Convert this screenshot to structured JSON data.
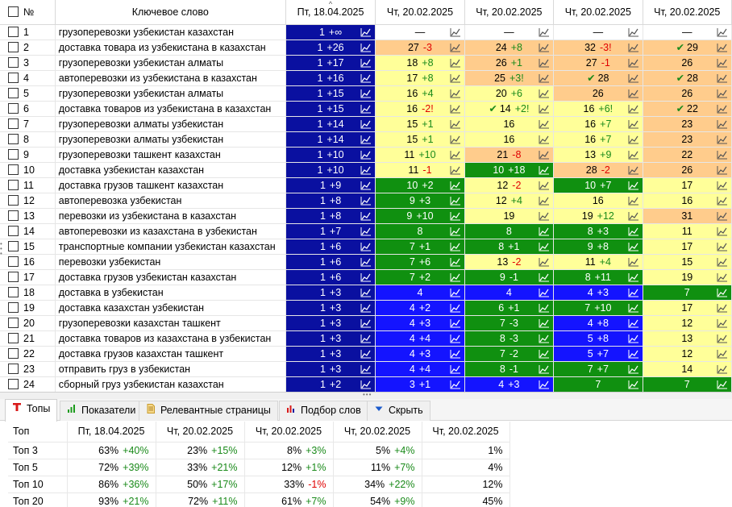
{
  "colors": {
    "navy": "#0a10a0",
    "blue": "#1414ff",
    "green": "#109010",
    "lightgreen": "#33cc33",
    "yellow": "#ffff99",
    "orange": "#ffcc8c",
    "delta_green": "#1a8a1a",
    "delta_red": "#e00000",
    "navy_green_delta": "#ffffff"
  },
  "header": {
    "num": "№",
    "keyword": "Ключевое слово",
    "dates": [
      "Пт, 18.04.2025",
      "Чт, 20.02.2025",
      "Чт, 20.02.2025",
      "Чт, 20.02.2025",
      "Чт, 20.02.2025"
    ]
  },
  "rows": [
    {
      "num": "1",
      "kw": "грузоперевозки узбекистан казахстан",
      "c": [
        {
          "v": "1",
          "d": "+∞",
          "bg": "navy"
        },
        {
          "v": "—",
          "d": "",
          "bg": "white"
        },
        {
          "v": "—",
          "d": "",
          "bg": "white"
        },
        {
          "v": "—",
          "d": "",
          "bg": "white"
        },
        {
          "v": "—",
          "d": "",
          "bg": "white"
        }
      ]
    },
    {
      "num": "2",
      "kw": "доставка товара из узбекистана в казахстан",
      "c": [
        {
          "v": "1",
          "d": "+26",
          "bg": "navy"
        },
        {
          "v": "27",
          "d": "-3",
          "bg": "orange"
        },
        {
          "v": "24",
          "d": "+8",
          "bg": "orange"
        },
        {
          "v": "32",
          "d": "-3!",
          "bg": "orange"
        },
        {
          "v": "29",
          "d": "",
          "bg": "orange",
          "check": true
        }
      ]
    },
    {
      "num": "3",
      "kw": "грузоперевозки узбекистан алматы",
      "c": [
        {
          "v": "1",
          "d": "+17",
          "bg": "navy"
        },
        {
          "v": "18",
          "d": "+8",
          "bg": "yellow"
        },
        {
          "v": "26",
          "d": "+1",
          "bg": "orange"
        },
        {
          "v": "27",
          "d": "-1",
          "bg": "orange"
        },
        {
          "v": "26",
          "d": "",
          "bg": "orange"
        }
      ]
    },
    {
      "num": "4",
      "kw": "автоперевозки из узбекистана в казахстан",
      "c": [
        {
          "v": "1",
          "d": "+16",
          "bg": "navy"
        },
        {
          "v": "17",
          "d": "+8",
          "bg": "yellow"
        },
        {
          "v": "25",
          "d": "+3!",
          "bg": "orange"
        },
        {
          "v": "28",
          "d": "",
          "bg": "orange",
          "check": true
        },
        {
          "v": "28",
          "d": "",
          "bg": "orange",
          "check": true
        }
      ]
    },
    {
      "num": "5",
      "kw": "грузоперевозки узбекистан алматы",
      "c": [
        {
          "v": "1",
          "d": "+15",
          "bg": "navy"
        },
        {
          "v": "16",
          "d": "+4",
          "bg": "yellow"
        },
        {
          "v": "20",
          "d": "+6",
          "bg": "yellow"
        },
        {
          "v": "26",
          "d": "",
          "bg": "orange"
        },
        {
          "v": "26",
          "d": "",
          "bg": "orange"
        }
      ]
    },
    {
      "num": "6",
      "kw": "доставка товаров из узбекистана в казахстан",
      "c": [
        {
          "v": "1",
          "d": "+15",
          "bg": "navy"
        },
        {
          "v": "16",
          "d": "-2!",
          "bg": "yellow"
        },
        {
          "v": "14",
          "d": "+2!",
          "bg": "yellow",
          "check": true
        },
        {
          "v": "16",
          "d": "+6!",
          "bg": "yellow"
        },
        {
          "v": "22",
          "d": "",
          "bg": "orange",
          "check": true
        }
      ]
    },
    {
      "num": "7",
      "kw": "грузоперевозки алматы узбекистан",
      "c": [
        {
          "v": "1",
          "d": "+14",
          "bg": "navy"
        },
        {
          "v": "15",
          "d": "+1",
          "bg": "yellow"
        },
        {
          "v": "16",
          "d": "",
          "bg": "yellow"
        },
        {
          "v": "16",
          "d": "+7",
          "bg": "yellow"
        },
        {
          "v": "23",
          "d": "",
          "bg": "orange"
        }
      ]
    },
    {
      "num": "8",
      "kw": "грузоперевозки алматы узбекистан",
      "c": [
        {
          "v": "1",
          "d": "+14",
          "bg": "navy"
        },
        {
          "v": "15",
          "d": "+1",
          "bg": "yellow"
        },
        {
          "v": "16",
          "d": "",
          "bg": "yellow"
        },
        {
          "v": "16",
          "d": "+7",
          "bg": "yellow"
        },
        {
          "v": "23",
          "d": "",
          "bg": "orange"
        }
      ]
    },
    {
      "num": "9",
      "kw": "грузоперевозки ташкент казахстан",
      "c": [
        {
          "v": "1",
          "d": "+10",
          "bg": "navy"
        },
        {
          "v": "11",
          "d": "+10",
          "bg": "yellow"
        },
        {
          "v": "21",
          "d": "-8",
          "bg": "orange"
        },
        {
          "v": "13",
          "d": "+9",
          "bg": "yellow"
        },
        {
          "v": "22",
          "d": "",
          "bg": "orange"
        }
      ]
    },
    {
      "num": "10",
      "kw": "доставка узбекистан казахстан",
      "c": [
        {
          "v": "1",
          "d": "+10",
          "bg": "navy"
        },
        {
          "v": "11",
          "d": "-1",
          "bg": "yellow"
        },
        {
          "v": "10",
          "d": "+18",
          "bg": "green"
        },
        {
          "v": "28",
          "d": "-2",
          "bg": "orange"
        },
        {
          "v": "26",
          "d": "",
          "bg": "orange"
        }
      ]
    },
    {
      "num": "11",
      "kw": "доставка грузов ташкент казахстан",
      "c": [
        {
          "v": "1",
          "d": "+9",
          "bg": "navy"
        },
        {
          "v": "10",
          "d": "+2",
          "bg": "green"
        },
        {
          "v": "12",
          "d": "-2",
          "bg": "yellow"
        },
        {
          "v": "10",
          "d": "+7",
          "bg": "green"
        },
        {
          "v": "17",
          "d": "",
          "bg": "yellow"
        }
      ]
    },
    {
      "num": "12",
      "kw": "автоперевозка узбекистан",
      "c": [
        {
          "v": "1",
          "d": "+8",
          "bg": "navy"
        },
        {
          "v": "9",
          "d": "+3",
          "bg": "green"
        },
        {
          "v": "12",
          "d": "+4",
          "bg": "yellow"
        },
        {
          "v": "16",
          "d": "",
          "bg": "yellow"
        },
        {
          "v": "16",
          "d": "",
          "bg": "yellow"
        }
      ]
    },
    {
      "num": "13",
      "kw": "перевозки из узбекистана в казахстан",
      "c": [
        {
          "v": "1",
          "d": "+8",
          "bg": "navy"
        },
        {
          "v": "9",
          "d": "+10",
          "bg": "green"
        },
        {
          "v": "19",
          "d": "",
          "bg": "yellow"
        },
        {
          "v": "19",
          "d": "+12",
          "bg": "yellow"
        },
        {
          "v": "31",
          "d": "",
          "bg": "orange"
        }
      ]
    },
    {
      "num": "14",
      "kw": "автоперевозки из казахстана в узбекистан",
      "c": [
        {
          "v": "1",
          "d": "+7",
          "bg": "navy"
        },
        {
          "v": "8",
          "d": "",
          "bg": "green"
        },
        {
          "v": "8",
          "d": "",
          "bg": "green"
        },
        {
          "v": "8",
          "d": "+3",
          "bg": "green"
        },
        {
          "v": "11",
          "d": "",
          "bg": "yellow"
        }
      ]
    },
    {
      "num": "15",
      "kw": "транспортные компании узбекистан казахстан",
      "c": [
        {
          "v": "1",
          "d": "+6",
          "bg": "navy"
        },
        {
          "v": "7",
          "d": "+1",
          "bg": "green"
        },
        {
          "v": "8",
          "d": "+1",
          "bg": "green"
        },
        {
          "v": "9",
          "d": "+8",
          "bg": "green"
        },
        {
          "v": "17",
          "d": "",
          "bg": "yellow"
        }
      ]
    },
    {
      "num": "16",
      "kw": "перевозки узбекистан",
      "c": [
        {
          "v": "1",
          "d": "+6",
          "bg": "navy"
        },
        {
          "v": "7",
          "d": "+6",
          "bg": "green"
        },
        {
          "v": "13",
          "d": "-2",
          "bg": "yellow"
        },
        {
          "v": "11",
          "d": "+4",
          "bg": "yellow"
        },
        {
          "v": "15",
          "d": "",
          "bg": "yellow"
        }
      ]
    },
    {
      "num": "17",
      "kw": "доставка грузов узбекистан казахстан",
      "c": [
        {
          "v": "1",
          "d": "+6",
          "bg": "navy"
        },
        {
          "v": "7",
          "d": "+2",
          "bg": "green"
        },
        {
          "v": "9",
          "d": "-1",
          "bg": "green"
        },
        {
          "v": "8",
          "d": "+11",
          "bg": "green"
        },
        {
          "v": "19",
          "d": "",
          "bg": "yellow"
        }
      ]
    },
    {
      "num": "18",
      "kw": "доставка в узбекистан",
      "c": [
        {
          "v": "1",
          "d": "+3",
          "bg": "navy"
        },
        {
          "v": "4",
          "d": "",
          "bg": "blue"
        },
        {
          "v": "4",
          "d": "",
          "bg": "blue"
        },
        {
          "v": "4",
          "d": "+3",
          "bg": "blue"
        },
        {
          "v": "7",
          "d": "",
          "bg": "green"
        }
      ]
    },
    {
      "num": "19",
      "kw": "доставка казахстан узбекистан",
      "c": [
        {
          "v": "1",
          "d": "+3",
          "bg": "navy"
        },
        {
          "v": "4",
          "d": "+2",
          "bg": "blue"
        },
        {
          "v": "6",
          "d": "+1",
          "bg": "green"
        },
        {
          "v": "7",
          "d": "+10",
          "bg": "green"
        },
        {
          "v": "17",
          "d": "",
          "bg": "yellow"
        }
      ]
    },
    {
      "num": "20",
      "kw": "грузоперевозки казахстан ташкент",
      "c": [
        {
          "v": "1",
          "d": "+3",
          "bg": "navy"
        },
        {
          "v": "4",
          "d": "+3",
          "bg": "blue"
        },
        {
          "v": "7",
          "d": "-3",
          "bg": "green"
        },
        {
          "v": "4",
          "d": "+8",
          "bg": "blue"
        },
        {
          "v": "12",
          "d": "",
          "bg": "yellow"
        }
      ]
    },
    {
      "num": "21",
      "kw": "доставка товаров из казахстана в узбекистан",
      "c": [
        {
          "v": "1",
          "d": "+3",
          "bg": "navy"
        },
        {
          "v": "4",
          "d": "+4",
          "bg": "blue"
        },
        {
          "v": "8",
          "d": "-3",
          "bg": "green"
        },
        {
          "v": "5",
          "d": "+8",
          "bg": "blue"
        },
        {
          "v": "13",
          "d": "",
          "bg": "yellow"
        }
      ]
    },
    {
      "num": "22",
      "kw": "доставка грузов казахстан ташкент",
      "c": [
        {
          "v": "1",
          "d": "+3",
          "bg": "navy"
        },
        {
          "v": "4",
          "d": "+3",
          "bg": "blue"
        },
        {
          "v": "7",
          "d": "-2",
          "bg": "green"
        },
        {
          "v": "5",
          "d": "+7",
          "bg": "blue"
        },
        {
          "v": "12",
          "d": "",
          "bg": "yellow"
        }
      ]
    },
    {
      "num": "23",
      "kw": "отправить груз в узбекистан",
      "c": [
        {
          "v": "1",
          "d": "+3",
          "bg": "navy"
        },
        {
          "v": "4",
          "d": "+4",
          "bg": "blue"
        },
        {
          "v": "8",
          "d": "-1",
          "bg": "green"
        },
        {
          "v": "7",
          "d": "+7",
          "bg": "green"
        },
        {
          "v": "14",
          "d": "",
          "bg": "yellow"
        }
      ]
    },
    {
      "num": "24",
      "kw": "сборный груз узбекистан казахстан",
      "c": [
        {
          "v": "1",
          "d": "+2",
          "bg": "navy"
        },
        {
          "v": "3",
          "d": "+1",
          "bg": "blue"
        },
        {
          "v": "4",
          "d": "+3",
          "bg": "blue"
        },
        {
          "v": "7",
          "d": "",
          "bg": "green"
        },
        {
          "v": "7",
          "d": "",
          "bg": "green"
        }
      ]
    }
  ],
  "tabs": [
    {
      "label": "Топы",
      "icon": "top-t-icon",
      "active": true
    },
    {
      "label": "Показатели",
      "icon": "bar-chart-icon",
      "active": false
    },
    {
      "label": "Релевантные страницы",
      "icon": "document-icon",
      "active": false
    },
    {
      "label": "Подбор слов",
      "icon": "word-chart-icon",
      "active": false
    },
    {
      "label": "Скрыть",
      "icon": "triangle-down-icon",
      "active": false
    }
  ],
  "tops": {
    "header": [
      "Топ",
      "Пт, 18.04.2025",
      "Чт, 20.02.2025",
      "Чт, 20.02.2025",
      "Чт, 20.02.2025",
      "Чт, 20.02.2025"
    ],
    "rows": [
      {
        "label": "Топ 3",
        "cells": [
          {
            "v": "63%",
            "d": "+40%"
          },
          {
            "v": "23%",
            "d": "+15%"
          },
          {
            "v": "8%",
            "d": "+3%"
          },
          {
            "v": "5%",
            "d": "+4%"
          },
          {
            "v": "1%",
            "d": ""
          }
        ]
      },
      {
        "label": "Топ 5",
        "cells": [
          {
            "v": "72%",
            "d": "+39%"
          },
          {
            "v": "33%",
            "d": "+21%"
          },
          {
            "v": "12%",
            "d": "+1%"
          },
          {
            "v": "11%",
            "d": "+7%"
          },
          {
            "v": "4%",
            "d": ""
          }
        ]
      },
      {
        "label": "Топ 10",
        "cells": [
          {
            "v": "86%",
            "d": "+36%"
          },
          {
            "v": "50%",
            "d": "+17%"
          },
          {
            "v": "33%",
            "d": "-1%"
          },
          {
            "v": "34%",
            "d": "+22%"
          },
          {
            "v": "12%",
            "d": ""
          }
        ]
      },
      {
        "label": "Топ 20",
        "cells": [
          {
            "v": "93%",
            "d": "+21%"
          },
          {
            "v": "72%",
            "d": "+11%"
          },
          {
            "v": "61%",
            "d": "+7%"
          },
          {
            "v": "54%",
            "d": "+9%"
          },
          {
            "v": "45%",
            "d": ""
          }
        ]
      }
    ]
  }
}
